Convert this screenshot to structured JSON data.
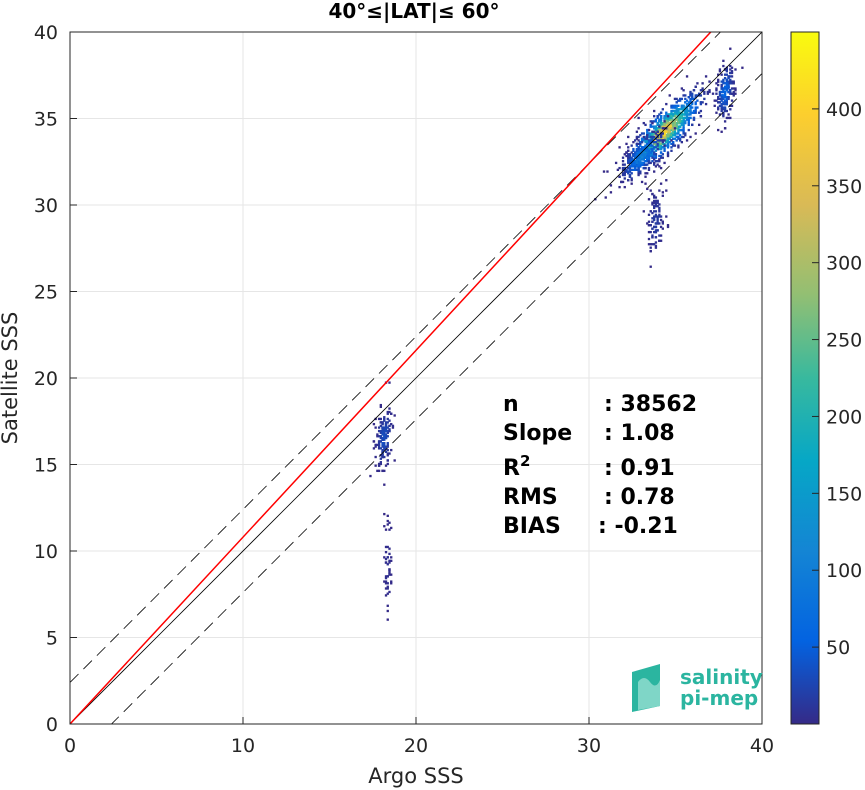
{
  "chart_data": {
    "type": "heatmap",
    "title": "40°≤|LAT|≤ 60°",
    "xlabel": "Argo SSS",
    "ylabel": "Satellite SSS",
    "xlim": [
      0,
      40
    ],
    "ylim": [
      0,
      40
    ],
    "xticks": [
      "0",
      "10",
      "20",
      "30",
      "40"
    ],
    "yticks": [
      "0",
      "5",
      "10",
      "15",
      "20",
      "25",
      "30",
      "35",
      "40"
    ],
    "grid": true,
    "colorbar": {
      "ticks": [
        "50",
        "100",
        "150",
        "200",
        "250",
        "300",
        "350",
        "400"
      ],
      "range": [
        0,
        450
      ],
      "colormap": "parula"
    },
    "lines": {
      "fit_color": "#ff0000",
      "fit_slope": 1.08,
      "fit_intercept": 0.0,
      "identity_color": "#000000",
      "envelope_offset": 2.4
    },
    "stats": [
      {
        "label": "n",
        "value": ": 38562"
      },
      {
        "label": "Slope",
        "value": ": 1.08"
      },
      {
        "label": "R",
        "sup": "2",
        "value": ": 0.91"
      },
      {
        "label": "RMS",
        "value": ": 0.78"
      },
      {
        "label": "BIAS",
        "value": ": -0.21"
      }
    ],
    "clusters": [
      {
        "cx": 34.3,
        "cy": 34.2,
        "sx": 1.0,
        "sy": 1.1,
        "peak": 440,
        "n": 1100
      },
      {
        "cx": 33.0,
        "cy": 32.8,
        "sx": 0.6,
        "sy": 0.9,
        "peak": 120,
        "n": 300
      },
      {
        "cx": 33.8,
        "cy": 29.0,
        "sx": 0.25,
        "sy": 2.0,
        "peak": 20,
        "n": 120
      },
      {
        "cx": 37.8,
        "cy": 36.5,
        "sx": 0.25,
        "sy": 1.4,
        "peak": 70,
        "n": 200
      },
      {
        "cx": 18.1,
        "cy": 16.5,
        "sx": 0.25,
        "sy": 1.6,
        "peak": 40,
        "n": 160
      },
      {
        "cx": 18.3,
        "cy": 9.0,
        "sx": 0.12,
        "sy": 2.5,
        "peak": 8,
        "n": 50
      }
    ]
  },
  "logo": {
    "line1": "salinity",
    "line2": "pi-mep",
    "color": "#2bb5a0"
  }
}
